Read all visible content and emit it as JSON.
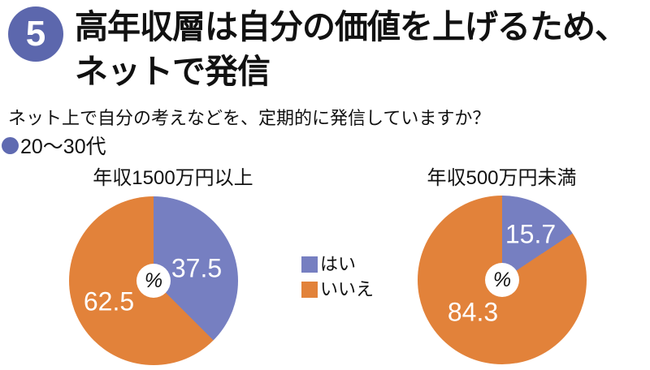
{
  "badge": {
    "number": "5"
  },
  "title": {
    "line1": "高年収層は自分の価値を上げるため、",
    "line2": "ネットで発信"
  },
  "subtitle": "ネット上で自分の考えなどを、定期的に発信していますか？",
  "age_group": "20〜30代",
  "legend": {
    "yes_label": "はい",
    "no_label": "いいえ"
  },
  "colors": {
    "yes": "#767fc1",
    "no": "#e2823a",
    "badge": "#5c67ad",
    "bullet": "#5f6ab1"
  },
  "chart_data": [
    {
      "type": "pie",
      "title": "年収1500万円以上",
      "unit": "%",
      "categories": [
        "はい",
        "いいえ"
      ],
      "values": [
        37.5,
        62.5
      ],
      "start_angle_deg": 0,
      "direction": "clockwise",
      "legend_position": "right-of-chart",
      "center_label": "%"
    },
    {
      "type": "pie",
      "title": "年収500万円未満",
      "unit": "%",
      "categories": [
        "はい",
        "いいえ"
      ],
      "values": [
        15.7,
        84.3
      ],
      "start_angle_deg": 0,
      "direction": "clockwise",
      "legend_position": "left-of-chart",
      "center_label": "%"
    }
  ]
}
